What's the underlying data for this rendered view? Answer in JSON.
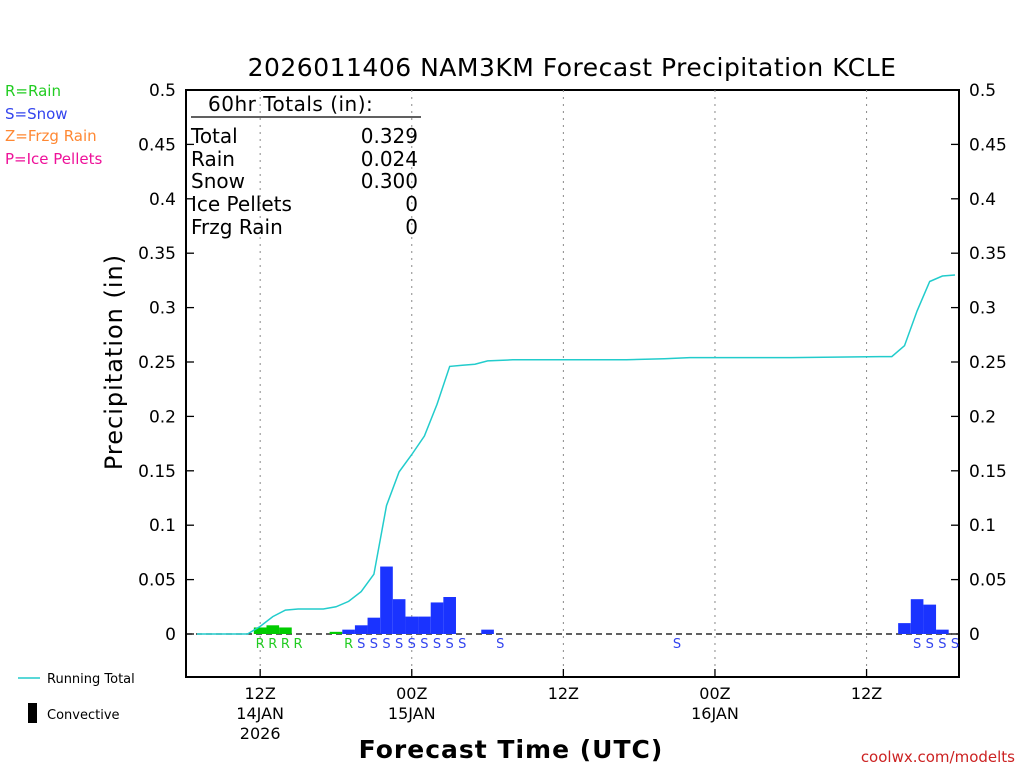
{
  "chart_data": {
    "type": "bar",
    "title": "2026011406 NAM3KM Forecast Precipitation KCLE",
    "ylabel": "Precipitation (in)",
    "xlabel": "Forecast Time (UTC)",
    "ylim": [
      -0.04,
      0.5
    ],
    "yticks": [
      "0.5",
      "0.45",
      "0.4",
      "0.35",
      "0.3",
      "0.25",
      "0.2",
      "0.15",
      "0.1",
      "0.05",
      "0"
    ],
    "ytick_values": [
      0.5,
      0.45,
      0.4,
      0.35,
      0.3,
      0.25,
      0.2,
      0.15,
      0.1,
      0.05,
      0
    ],
    "xlim_hours": [
      1,
      61
    ],
    "xticks": [
      {
        "hour": 6,
        "lines": [
          "12Z",
          "14JAN",
          "2026"
        ]
      },
      {
        "hour": 18,
        "lines": [
          "00Z",
          "15JAN"
        ]
      },
      {
        "hour": 30,
        "lines": [
          "12Z"
        ]
      },
      {
        "hour": 42,
        "lines": [
          "00Z",
          "16JAN"
        ]
      },
      {
        "hour": 54,
        "lines": [
          "12Z"
        ]
      }
    ],
    "grid": "vertical dotted at 12Z/00Z",
    "rain_color": "#00cc00",
    "snow_color": "#1a33ff",
    "total_color": "#22cccc",
    "bars": [
      {
        "hour": 6,
        "value": 0.006,
        "type": "rain"
      },
      {
        "hour": 7,
        "value": 0.008,
        "type": "rain"
      },
      {
        "hour": 8,
        "value": 0.006,
        "type": "rain"
      },
      {
        "hour": 12,
        "value": 0.002,
        "type": "rain"
      },
      {
        "hour": 13,
        "value": 0.004,
        "type": "snow"
      },
      {
        "hour": 14,
        "value": 0.008,
        "type": "snow"
      },
      {
        "hour": 15,
        "value": 0.015,
        "type": "snow"
      },
      {
        "hour": 16,
        "value": 0.062,
        "type": "snow"
      },
      {
        "hour": 17,
        "value": 0.032,
        "type": "snow"
      },
      {
        "hour": 18,
        "value": 0.016,
        "type": "snow"
      },
      {
        "hour": 19,
        "value": 0.016,
        "type": "snow"
      },
      {
        "hour": 20,
        "value": 0.029,
        "type": "snow"
      },
      {
        "hour": 21,
        "value": 0.034,
        "type": "snow"
      },
      {
        "hour": 24,
        "value": 0.004,
        "type": "snow"
      },
      {
        "hour": 57,
        "value": 0.01,
        "type": "snow"
      },
      {
        "hour": 58,
        "value": 0.032,
        "type": "snow"
      },
      {
        "hour": 59,
        "value": 0.027,
        "type": "snow"
      },
      {
        "hour": 60,
        "value": 0.004,
        "type": "snow"
      }
    ],
    "type_marks": [
      {
        "hour": 6,
        "label": "R",
        "type": "rain"
      },
      {
        "hour": 7,
        "label": "R",
        "type": "rain"
      },
      {
        "hour": 8,
        "label": "R",
        "type": "rain"
      },
      {
        "hour": 9,
        "label": "R",
        "type": "rain"
      },
      {
        "hour": 13,
        "label": "R",
        "type": "rain"
      },
      {
        "hour": 14,
        "label": "S",
        "type": "snow"
      },
      {
        "hour": 15,
        "label": "S",
        "type": "snow"
      },
      {
        "hour": 16,
        "label": "S",
        "type": "snow"
      },
      {
        "hour": 17,
        "label": "S",
        "type": "snow"
      },
      {
        "hour": 18,
        "label": "S",
        "type": "snow"
      },
      {
        "hour": 19,
        "label": "S",
        "type": "snow"
      },
      {
        "hour": 20,
        "label": "S",
        "type": "snow"
      },
      {
        "hour": 21,
        "label": "S",
        "type": "snow"
      },
      {
        "hour": 22,
        "label": "S",
        "type": "snow"
      },
      {
        "hour": 25,
        "label": "S",
        "type": "snow"
      },
      {
        "hour": 39,
        "label": "S",
        "type": "snow"
      },
      {
        "hour": 58,
        "label": "S",
        "type": "snow"
      },
      {
        "hour": 59,
        "label": "S",
        "type": "snow"
      },
      {
        "hour": 60,
        "label": "S",
        "type": "snow"
      },
      {
        "hour": 61,
        "label": "S",
        "type": "snow"
      }
    ],
    "running_total": {
      "x": [
        1,
        3,
        5,
        6,
        7,
        8,
        9,
        10,
        11,
        12,
        13,
        14,
        15,
        16,
        17,
        18,
        19,
        20,
        21,
        22,
        23,
        24,
        26,
        30,
        35,
        38,
        40,
        43,
        48,
        55,
        56,
        57,
        58,
        59,
        60,
        61
      ],
      "y": [
        0,
        0,
        0,
        0.007,
        0.016,
        0.022,
        0.023,
        0.023,
        0.023,
        0.025,
        0.03,
        0.039,
        0.055,
        0.118,
        0.149,
        0.165,
        0.182,
        0.211,
        0.246,
        0.247,
        0.248,
        0.251,
        0.252,
        0.252,
        0.252,
        0.253,
        0.254,
        0.254,
        0.254,
        0.255,
        0.255,
        0.265,
        0.297,
        0.324,
        0.329,
        0.33
      ]
    }
  },
  "totals_box": {
    "heading": "60hr Totals (in):",
    "rows": [
      {
        "label": "Total",
        "value": "0.329"
      },
      {
        "label": "Rain",
        "value": "0.024"
      },
      {
        "label": "Snow",
        "value": "0.300"
      },
      {
        "label": "Ice Pellets",
        "value": "0"
      },
      {
        "label": "Frzg Rain",
        "value": "0"
      }
    ]
  },
  "type_legend": [
    {
      "text": "R=Rain",
      "color": "#22cc22"
    },
    {
      "text": "S=Snow",
      "color": "#3344ee"
    },
    {
      "text": "Z=Frzg Rain",
      "color": "#ff8833"
    },
    {
      "text": "P=Ice Pellets",
      "color": "#ee1199"
    }
  ],
  "bottom_legend": {
    "running_total": "Running Total",
    "convective": "Convective"
  },
  "credit": "coolwx.com/modelts",
  "credit_color": "#cc2222"
}
